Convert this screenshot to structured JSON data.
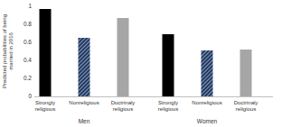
{
  "chart_data": {
    "type": "bar",
    "ylabel": "Predicted probabilities of being married in 2016",
    "categories": [
      "Men",
      "Women"
    ],
    "series": [
      {
        "name": "Strongly religious",
        "color": "#000000",
        "values": [
          0.97,
          0.69
        ]
      },
      {
        "name": "Nonreligious",
        "color": "#1f3864",
        "values": [
          0.65,
          0.51
        ]
      },
      {
        "name": "Doctrinaly religious",
        "color": "#a6a6a6",
        "values": [
          0.87,
          0.52
        ]
      }
    ],
    "ylim": [
      0,
      1
    ],
    "yticks": [
      0,
      0.2,
      0.4,
      0.6,
      0.8,
      1
    ],
    "grid": false
  }
}
